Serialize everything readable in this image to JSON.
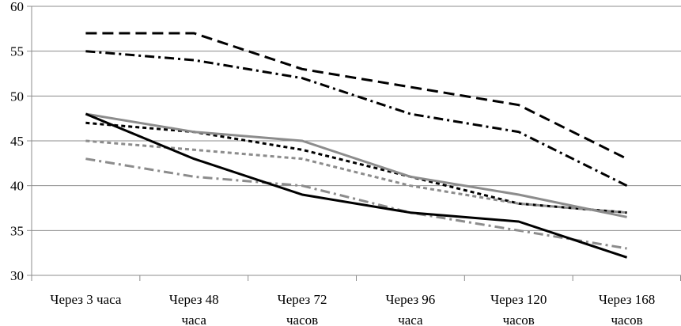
{
  "chart_data": {
    "type": "line",
    "categories": [
      [
        "Через 3 часа"
      ],
      [
        "Через 48",
        "часа"
      ],
      [
        "Через 72",
        "часов"
      ],
      [
        "Через 96",
        "часа"
      ],
      [
        "Через 120",
        "часов"
      ],
      [
        "Через 168",
        "часов"
      ]
    ],
    "ylim": [
      30,
      60
    ],
    "yticks": [
      "30",
      "35",
      "40",
      "45",
      "50",
      "55",
      "60"
    ],
    "grid": true,
    "legend": "none",
    "series": [
      {
        "values": [
          57,
          57,
          53,
          51,
          49,
          43
        ],
        "color": "#000000",
        "dash": "long-dash"
      },
      {
        "values": [
          55,
          54,
          52,
          48,
          46,
          40
        ],
        "color": "#000000",
        "dash": "dash-dot"
      },
      {
        "values": [
          47,
          46,
          44,
          41,
          38,
          37
        ],
        "color": "#000000",
        "dash": "short-dash"
      },
      {
        "values": [
          48,
          46,
          45,
          41,
          39,
          36.5
        ],
        "color": "#8c8c8c",
        "dash": "solid"
      },
      {
        "values": [
          45,
          44,
          43,
          40,
          38,
          37
        ],
        "color": "#8c8c8c",
        "dash": "short-dash"
      },
      {
        "values": [
          43,
          41,
          40,
          37,
          35,
          33
        ],
        "color": "#8c8c8c",
        "dash": "dash-dot"
      },
      {
        "values": [
          48,
          43,
          39,
          37,
          36,
          32
        ],
        "color": "#000000",
        "dash": "solid"
      }
    ]
  }
}
